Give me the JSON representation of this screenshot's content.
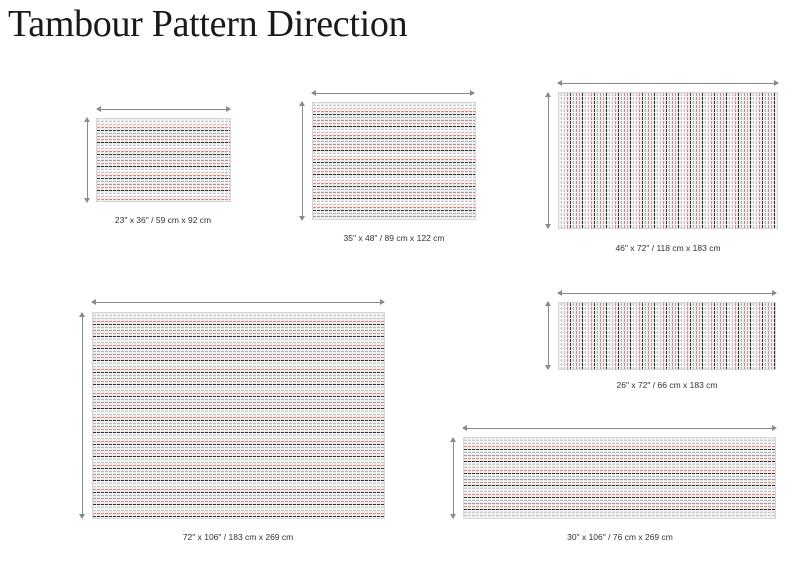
{
  "page": {
    "title": "Tambour Pattern Direction"
  },
  "rugs": [
    {
      "label": "23\" x 36\" / 59 cm x 92 cm"
    },
    {
      "label": "35\" x 48\" / 89 cm x 122 cm"
    },
    {
      "label": "46\" x 72\" / 118 cm x 183 cm"
    },
    {
      "label": "72\" x 106\" / 183 cm x 269 cm"
    },
    {
      "label": "26\" x 72\" / 66 cm x 183 cm"
    },
    {
      "label": "30\" x 106\" / 76 cm x 269 cm"
    }
  ],
  "colors": {
    "stripe_coral": "#e0897c",
    "stripe_dark": "#3a3a3a",
    "stripe_slate": "#9aa0aa",
    "base_gray": "#e7e7e7",
    "arrow": "#8a8a8a"
  }
}
